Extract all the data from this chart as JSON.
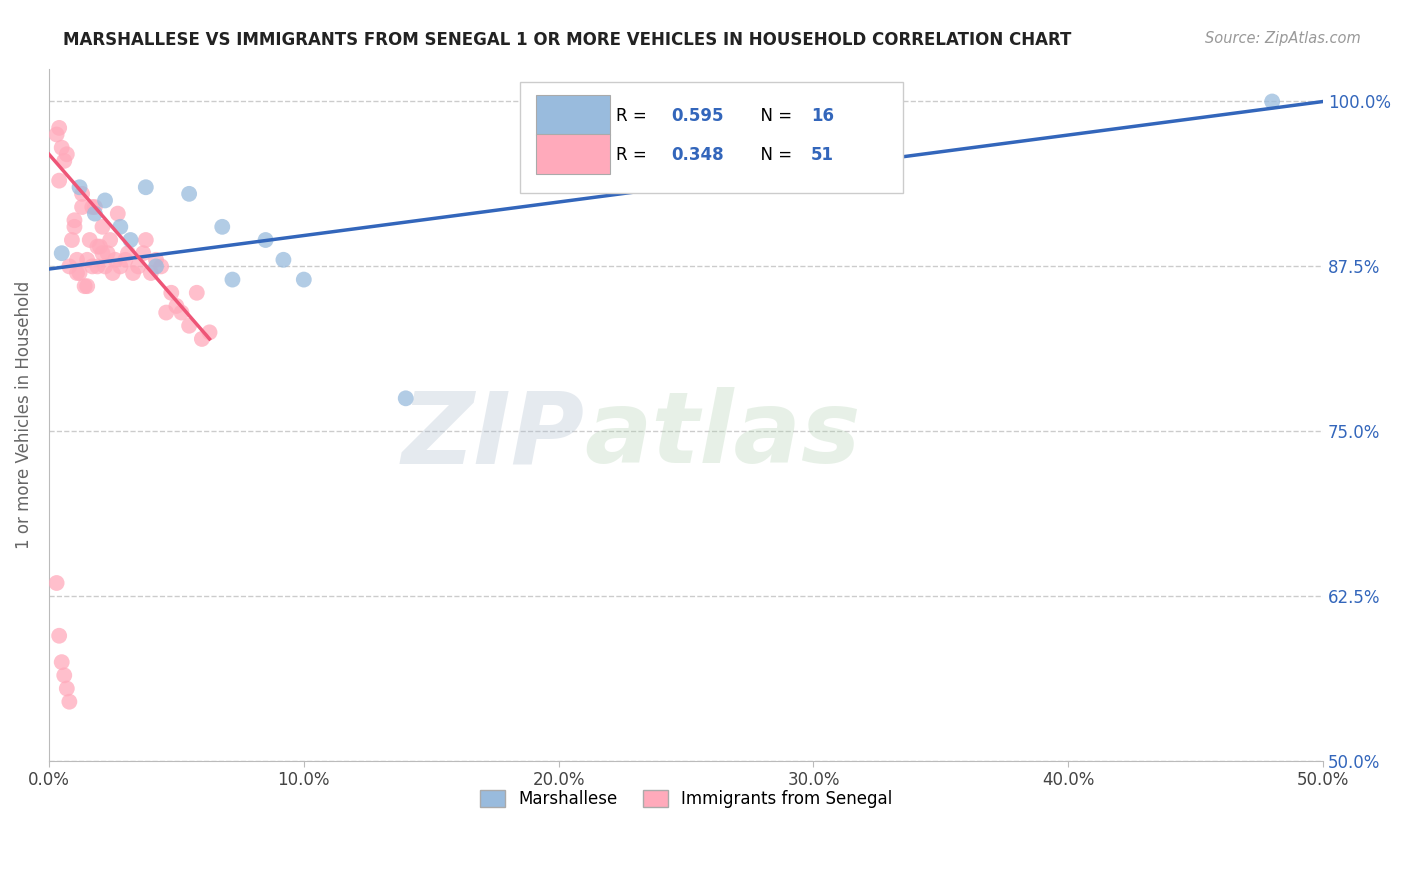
{
  "title": "MARSHALLESE VS IMMIGRANTS FROM SENEGAL 1 OR MORE VEHICLES IN HOUSEHOLD CORRELATION CHART",
  "source": "Source: ZipAtlas.com",
  "ylabel": "1 or more Vehicles in Household",
  "legend_blue_label": "Marshallese",
  "legend_pink_label": "Immigrants from Senegal",
  "blue_color": "#99BBDD",
  "pink_color": "#FFAABB",
  "blue_line_color": "#3366BB",
  "pink_line_color": "#EE5577",
  "watermark_zip": "ZIP",
  "watermark_atlas": "atlas",
  "xlim": [
    0.0,
    0.5
  ],
  "ylim": [
    0.5,
    1.025
  ],
  "yticks": [
    0.5,
    0.625,
    0.75,
    0.875,
    1.0
  ],
  "ytick_labels": [
    "50.0%",
    "62.5%",
    "75.0%",
    "87.5%",
    "100.0%"
  ],
  "xticks": [
    0.0,
    0.1,
    0.2,
    0.3,
    0.4,
    0.5
  ],
  "xtick_labels": [
    "0.0%",
    "10.0%",
    "20.0%",
    "30.0%",
    "40.0%",
    "50.0%"
  ],
  "grid_color": "#CCCCCC",
  "background_color": "#FFFFFF",
  "blue_scatter_x": [
    0.005,
    0.012,
    0.018,
    0.022,
    0.028,
    0.032,
    0.038,
    0.042,
    0.055,
    0.068,
    0.072,
    0.085,
    0.092,
    0.1,
    0.14,
    0.48
  ],
  "blue_scatter_y": [
    0.885,
    0.935,
    0.915,
    0.925,
    0.905,
    0.895,
    0.935,
    0.875,
    0.93,
    0.905,
    0.865,
    0.895,
    0.88,
    0.865,
    0.775,
    1.0
  ],
  "pink_scatter_x": [
    0.003,
    0.004,
    0.005,
    0.006,
    0.007,
    0.008,
    0.009,
    0.01,
    0.011,
    0.012,
    0.013,
    0.014,
    0.015,
    0.016,
    0.017,
    0.018,
    0.019,
    0.02,
    0.021,
    0.022,
    0.023,
    0.024,
    0.025,
    0.026,
    0.027,
    0.028,
    0.03,
    0.031,
    0.033,
    0.035,
    0.037,
    0.038,
    0.04,
    0.042,
    0.044,
    0.046,
    0.048,
    0.05,
    0.052,
    0.055,
    0.058,
    0.06,
    0.063,
    0.01,
    0.011,
    0.013,
    0.015,
    0.017,
    0.019,
    0.021,
    0.004
  ],
  "pink_scatter_y": [
    0.975,
    0.98,
    0.965,
    0.955,
    0.96,
    0.875,
    0.895,
    0.905,
    0.88,
    0.87,
    0.93,
    0.86,
    0.88,
    0.895,
    0.875,
    0.92,
    0.89,
    0.89,
    0.905,
    0.875,
    0.885,
    0.895,
    0.87,
    0.88,
    0.915,
    0.875,
    0.88,
    0.885,
    0.87,
    0.875,
    0.885,
    0.895,
    0.87,
    0.88,
    0.875,
    0.84,
    0.855,
    0.845,
    0.84,
    0.83,
    0.855,
    0.82,
    0.825,
    0.91,
    0.87,
    0.92,
    0.86,
    0.92,
    0.875,
    0.885,
    0.94
  ],
  "pink_low_x": [
    0.003,
    0.004,
    0.005,
    0.006,
    0.007,
    0.008
  ],
  "pink_low_y": [
    0.635,
    0.595,
    0.575,
    0.565,
    0.555,
    0.545
  ],
  "blue_line_x0": 0.0,
  "blue_line_y0": 0.873,
  "blue_line_x1": 0.5,
  "blue_line_y1": 1.0,
  "pink_line_x0": 0.0,
  "pink_line_y0": 0.96,
  "pink_line_x1": 0.063,
  "pink_line_y1": 0.82
}
